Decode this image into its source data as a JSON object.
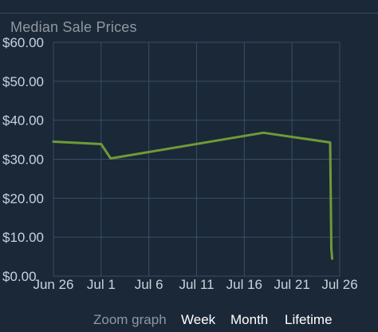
{
  "chart_data": {
    "type": "line",
    "title": "Median Sale Prices",
    "x_tick_labels": [
      "Jun 26",
      "Jul 1",
      "Jul 6",
      "Jul 11",
      "Jul 16",
      "Jul 21",
      "Jul 26"
    ],
    "y_tick_labels": [
      "$60.00",
      "$50.00",
      "$40.00",
      "$30.00",
      "$20.00",
      "$10.00",
      "$0.00"
    ],
    "ylim": [
      0,
      60
    ],
    "y_ticks": [
      0,
      10,
      20,
      30,
      40,
      50,
      60
    ],
    "xlim": [
      "2023-06-26",
      "2023-07-26"
    ],
    "grid": true,
    "series": [
      {
        "color": "#6f9a37",
        "points": [
          {
            "x": "2023-06-26",
            "y": 34.5
          },
          {
            "x": "2023-07-01",
            "y": 33.9
          },
          {
            "x": "2023-07-02",
            "y": 30.2
          },
          {
            "x": "2023-07-18",
            "y": 36.8
          },
          {
            "x": "2023-07-25",
            "y": 34.3
          },
          {
            "x": "2023-07-25",
            "y": 7.0
          },
          {
            "x": "2023-07-25",
            "y": 4.5
          }
        ]
      }
    ]
  },
  "zoom": {
    "label": "Zoom graph",
    "week": "Week",
    "month": "Month",
    "lifetime": "Lifetime"
  },
  "colors": {
    "background": "#1b2838",
    "grid": "#364e66",
    "line": "#6f9a37",
    "text": "#c6d4df",
    "muted_text": "#8f98a0"
  }
}
